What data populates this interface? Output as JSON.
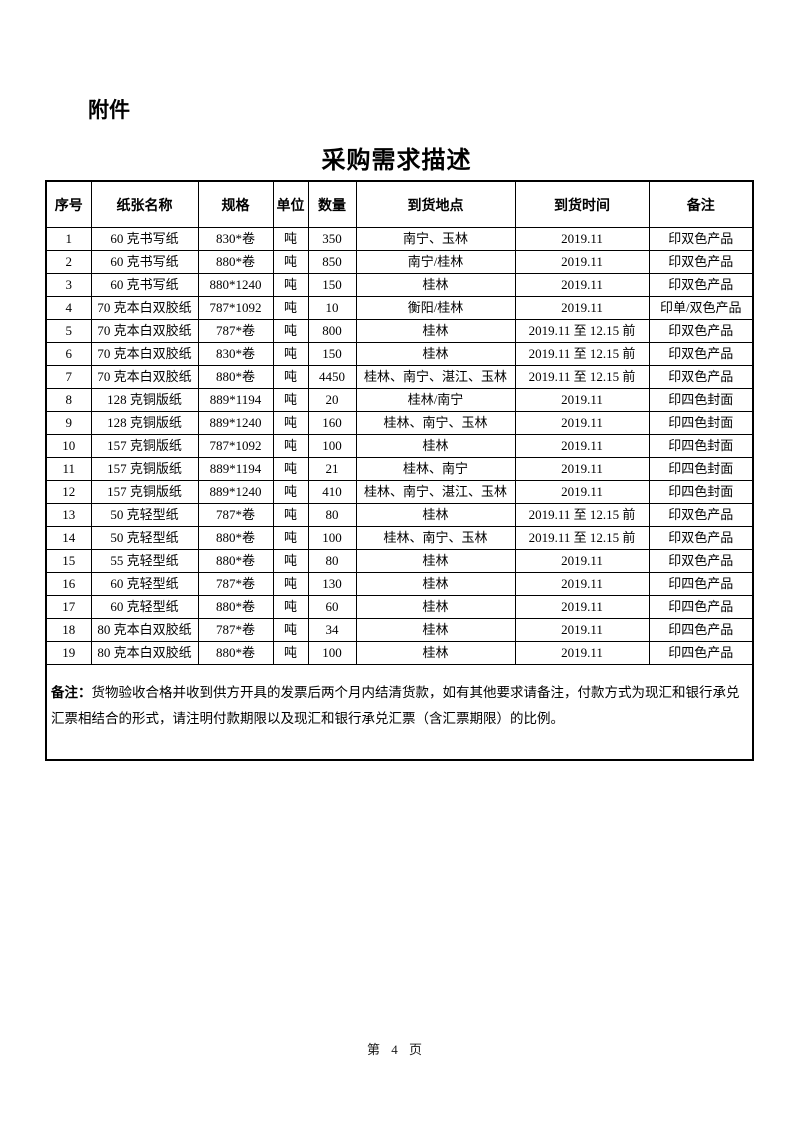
{
  "page": {
    "attachment_label": "附件",
    "title": "采购需求描述",
    "footer": "第 4 页"
  },
  "table": {
    "headers": [
      "序号",
      "纸张名称",
      "规格",
      "单位",
      "数量",
      "到货地点",
      "到货时间",
      "备注"
    ],
    "rows": [
      {
        "no": "1",
        "name": "60 克书写纸",
        "spec": "830*卷",
        "unit": "吨",
        "qty": "350",
        "location": "南宁、玉林",
        "time": "2019.11",
        "remark": "印双色产品"
      },
      {
        "no": "2",
        "name": "60 克书写纸",
        "spec": "880*卷",
        "unit": "吨",
        "qty": "850",
        "location": "南宁/桂林",
        "time": "2019.11",
        "remark": "印双色产品"
      },
      {
        "no": "3",
        "name": "60 克书写纸",
        "spec": "880*1240",
        "unit": "吨",
        "qty": "150",
        "location": "桂林",
        "time": "2019.11",
        "remark": "印双色产品"
      },
      {
        "no": "4",
        "name": "70 克本白双胶纸",
        "spec": "787*1092",
        "unit": "吨",
        "qty": "10",
        "location": "衡阳/桂林",
        "time": "2019.11",
        "remark": "印单/双色产品"
      },
      {
        "no": "5",
        "name": "70 克本白双胶纸",
        "spec": "787*卷",
        "unit": "吨",
        "qty": "800",
        "location": "桂林",
        "time": "2019.11 至 12.15 前",
        "remark": "印双色产品"
      },
      {
        "no": "6",
        "name": "70 克本白双胶纸",
        "spec": "830*卷",
        "unit": "吨",
        "qty": "150",
        "location": "桂林",
        "time": "2019.11 至 12.15 前",
        "remark": "印双色产品"
      },
      {
        "no": "7",
        "name": "70 克本白双胶纸",
        "spec": "880*卷",
        "unit": "吨",
        "qty": "4450",
        "location": "桂林、南宁、湛江、玉林",
        "time": "2019.11 至 12.15 前",
        "remark": "印双色产品"
      },
      {
        "no": "8",
        "name": "128 克铜版纸",
        "spec": "889*1194",
        "unit": "吨",
        "qty": "20",
        "location": "桂林/南宁",
        "time": "2019.11",
        "remark": "印四色封面"
      },
      {
        "no": "9",
        "name": "128 克铜版纸",
        "spec": "889*1240",
        "unit": "吨",
        "qty": "160",
        "location": "桂林、南宁、玉林",
        "time": "2019.11",
        "remark": "印四色封面"
      },
      {
        "no": "10",
        "name": "157 克铜版纸",
        "spec": "787*1092",
        "unit": "吨",
        "qty": "100",
        "location": "桂林",
        "time": "2019.11",
        "remark": "印四色封面"
      },
      {
        "no": "11",
        "name": "157 克铜版纸",
        "spec": "889*1194",
        "unit": "吨",
        "qty": "21",
        "location": "桂林、南宁",
        "time": "2019.11",
        "remark": "印四色封面"
      },
      {
        "no": "12",
        "name": "157 克铜版纸",
        "spec": "889*1240",
        "unit": "吨",
        "qty": "410",
        "location": "桂林、南宁、湛江、玉林",
        "time": "2019.11",
        "remark": "印四色封面"
      },
      {
        "no": "13",
        "name": "50 克轻型纸",
        "spec": "787*卷",
        "unit": "吨",
        "qty": "80",
        "location": "桂林",
        "time": "2019.11 至 12.15 前",
        "remark": "印双色产品"
      },
      {
        "no": "14",
        "name": "50 克轻型纸",
        "spec": "880*卷",
        "unit": "吨",
        "qty": "100",
        "location": "桂林、南宁、玉林",
        "time": "2019.11 至 12.15 前",
        "remark": "印双色产品"
      },
      {
        "no": "15",
        "name": "55 克轻型纸",
        "spec": "880*卷",
        "unit": "吨",
        "qty": "80",
        "location": "桂林",
        "time": "2019.11",
        "remark": "印双色产品"
      },
      {
        "no": "16",
        "name": "60 克轻型纸",
        "spec": "787*卷",
        "unit": "吨",
        "qty": "130",
        "location": "桂林",
        "time": "2019.11",
        "remark": "印四色产品"
      },
      {
        "no": "17",
        "name": "60 克轻型纸",
        "spec": "880*卷",
        "unit": "吨",
        "qty": "60",
        "location": "桂林",
        "time": "2019.11",
        "remark": "印四色产品"
      },
      {
        "no": "18",
        "name": "80 克本白双胶纸",
        "spec": "787*卷",
        "unit": "吨",
        "qty": "34",
        "location": "桂林",
        "time": "2019.11",
        "remark": "印四色产品"
      },
      {
        "no": "19",
        "name": "80 克本白双胶纸",
        "spec": "880*卷",
        "unit": "吨",
        "qty": "100",
        "location": "桂林",
        "time": "2019.11",
        "remark": "印四色产品"
      }
    ],
    "note_label": "备注：",
    "note_text": "货物验收合格并收到供方开具的发票后两个月内结清货款，如有其他要求请备注，付款方式为现汇和银行承兑汇票相结合的形式，请注明付款期限以及现汇和银行承兑汇票（含汇票期限）的比例。"
  }
}
